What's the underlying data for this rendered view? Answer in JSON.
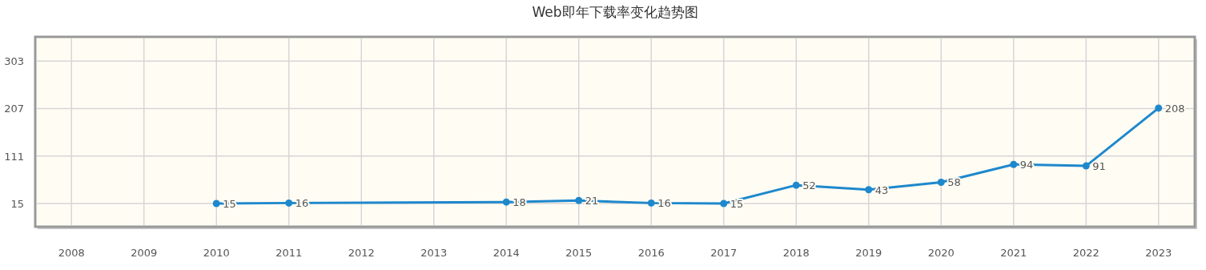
{
  "chart_data": {
    "type": "line",
    "title": "Web即年下载率变化趋势图",
    "categories": [
      "2008",
      "2009",
      "2010",
      "2011",
      "2012",
      "2013",
      "2014",
      "2015",
      "2016",
      "2017",
      "2018",
      "2019",
      "2020",
      "2021",
      "2022",
      "2023"
    ],
    "series": [
      {
        "color": "#1e88cc",
        "values": [
          null,
          null,
          15,
          16,
          null,
          null,
          18,
          21,
          16,
          15,
          52,
          43,
          58,
          94,
          91,
          208
        ]
      }
    ],
    "ylim": [
      -32,
      352
    ],
    "yticks": [
      15,
      111,
      207,
      303
    ],
    "grid": true,
    "marker": "circle",
    "data_labels": true
  }
}
